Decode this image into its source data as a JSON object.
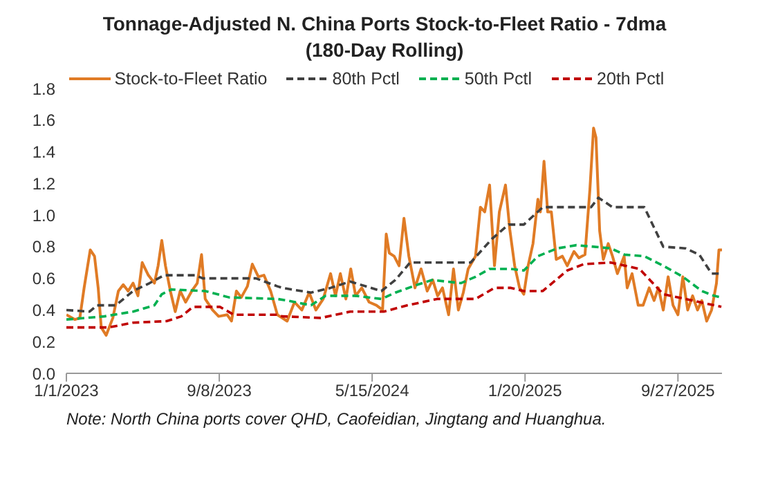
{
  "chart_data": {
    "type": "line",
    "title": "Tonnage-Adjusted N. China Ports Stock-to-Fleet Ratio - 7dma",
    "subtitle": "(180-Day Rolling)",
    "annotations": [
      "Note: North China ports cover QHD, Caofeidian, Jingtang and Huanghua."
    ],
    "xlim": [
      "2023-01-01",
      "2025-12-08"
    ],
    "xticks": [
      {
        "value": "2023-01-01",
        "label": "1/1/2023"
      },
      {
        "value": "2023-09-08",
        "label": "9/8/2023"
      },
      {
        "value": "2024-05-15",
        "label": "5/15/2024"
      },
      {
        "value": "2025-01-20",
        "label": "1/20/2025"
      },
      {
        "value": "2025-09-27",
        "label": "9/27/2025"
      }
    ],
    "ylim": [
      0,
      1.8
    ],
    "yticks": [
      {
        "value": 0,
        "label": "0.0"
      },
      {
        "value": 0.2,
        "label": "0.2"
      },
      {
        "value": 0.4,
        "label": "0.4"
      },
      {
        "value": 0.6,
        "label": "0.6"
      },
      {
        "value": 0.8,
        "label": "0.8"
      },
      {
        "value": 1,
        "label": "1.0"
      },
      {
        "value": 1.2,
        "label": "1.2"
      },
      {
        "value": 1.4,
        "label": "1.4"
      },
      {
        "value": 1.6,
        "label": "1.6"
      },
      {
        "value": 1.8,
        "label": "1.8"
      }
    ],
    "grid": false,
    "legend": "top",
    "marker": "none",
    "series": [
      {
        "name": "Stock-to-Fleet Ratio",
        "color": "#e07b25",
        "line_style": "solid",
        "x": [
          "2023-01-01",
          "2023-01-15",
          "2023-01-23",
          "2023-01-30",
          "2023-02-09",
          "2023-02-16",
          "2023-02-22",
          "2023-02-27",
          "2023-03-07",
          "2023-03-18",
          "2023-03-27",
          "2023-04-04",
          "2023-04-12",
          "2023-04-20",
          "2023-04-28",
          "2023-05-05",
          "2023-05-15",
          "2023-05-25",
          "2023-05-31",
          "2023-06-06",
          "2023-06-12",
          "2023-06-20",
          "2023-06-28",
          "2023-07-06",
          "2023-07-15",
          "2023-07-25",
          "2023-08-03",
          "2023-08-10",
          "2023-08-16",
          "2023-08-28",
          "2023-09-07",
          "2023-09-21",
          "2023-09-28",
          "2023-10-06",
          "2023-10-14",
          "2023-10-24",
          "2023-11-01",
          "2023-11-11",
          "2023-11-20",
          "2023-12-01",
          "2023-12-12",
          "2023-12-28",
          "2024-01-09",
          "2024-01-21",
          "2024-02-02",
          "2024-02-13",
          "2024-02-25",
          "2024-03-08",
          "2024-03-16",
          "2024-03-24",
          "2024-04-02",
          "2024-04-10",
          "2024-04-18",
          "2024-04-28",
          "2024-05-10",
          "2024-05-22",
          "2024-06-01",
          "2024-06-07",
          "2024-06-12",
          "2024-06-20",
          "2024-06-28",
          "2024-07-06",
          "2024-07-14",
          "2024-07-24",
          "2024-08-03",
          "2024-08-13",
          "2024-08-22",
          "2024-08-30",
          "2024-09-07",
          "2024-09-17",
          "2024-09-25",
          "2024-10-03",
          "2024-10-11",
          "2024-10-19",
          "2024-10-31",
          "2024-11-08",
          "2024-11-15",
          "2024-11-23",
          "2024-12-01",
          "2024-12-09",
          "2024-12-19",
          "2024-12-26",
          "2025-01-03",
          "2025-01-11",
          "2025-01-18",
          "2025-01-25",
          "2025-02-02",
          "2025-02-10",
          "2025-02-14",
          "2025-02-20",
          "2025-02-26",
          "2025-03-04",
          "2025-03-12",
          "2025-03-22",
          "2025-03-30",
          "2025-04-10",
          "2025-04-18",
          "2025-04-28",
          "2025-05-06",
          "2025-05-12",
          "2025-05-16",
          "2025-05-22",
          "2025-05-28",
          "2025-06-05",
          "2025-06-12",
          "2025-06-20",
          "2025-07-01",
          "2025-07-06",
          "2025-07-14",
          "2025-07-24",
          "2025-08-01",
          "2025-08-11",
          "2025-08-19",
          "2025-08-26",
          "2025-09-03",
          "2025-09-11",
          "2025-09-19",
          "2025-09-27",
          "2025-10-05",
          "2025-10-13",
          "2025-10-21",
          "2025-10-29",
          "2025-11-05",
          "2025-11-13",
          "2025-11-21",
          "2025-11-29",
          "2025-12-03",
          "2025-12-08"
        ],
        "values": [
          0.37,
          0.34,
          0.35,
          0.54,
          0.78,
          0.74,
          0.54,
          0.29,
          0.24,
          0.35,
          0.52,
          0.56,
          0.52,
          0.57,
          0.49,
          0.7,
          0.62,
          0.57,
          0.68,
          0.84,
          0.68,
          0.52,
          0.39,
          0.52,
          0.45,
          0.52,
          0.57,
          0.75,
          0.47,
          0.4,
          0.36,
          0.37,
          0.33,
          0.52,
          0.48,
          0.55,
          0.69,
          0.61,
          0.62,
          0.52,
          0.37,
          0.33,
          0.45,
          0.4,
          0.51,
          0.4,
          0.47,
          0.63,
          0.49,
          0.63,
          0.47,
          0.66,
          0.49,
          0.54,
          0.45,
          0.43,
          0.4,
          0.88,
          0.76,
          0.74,
          0.68,
          0.98,
          0.74,
          0.54,
          0.66,
          0.52,
          0.59,
          0.49,
          0.54,
          0.37,
          0.66,
          0.4,
          0.51,
          0.66,
          0.74,
          1.05,
          1.02,
          1.19,
          0.68,
          1.02,
          1.19,
          0.91,
          0.68,
          0.54,
          0.5,
          0.68,
          0.82,
          1.1,
          1.02,
          1.34,
          1.02,
          1.02,
          0.72,
          0.74,
          0.68,
          0.77,
          0.73,
          0.75,
          1.16,
          1.55,
          1.49,
          0.9,
          0.72,
          0.82,
          0.74,
          0.63,
          0.74,
          0.54,
          0.63,
          0.43,
          0.43,
          0.54,
          0.46,
          0.54,
          0.4,
          0.61,
          0.43,
          0.37,
          0.61,
          0.4,
          0.49,
          0.4,
          0.46,
          0.33,
          0.4,
          0.57,
          0.78,
          0.78
        ]
      },
      {
        "name": "80th Pctl",
        "color": "#404040",
        "line_style": "dashed",
        "x": [
          "2023-01-01",
          "2023-02-08",
          "2023-02-20",
          "2023-03-23",
          "2023-04-20",
          "2023-05-17",
          "2023-06-10",
          "2023-07-31",
          "2023-08-12",
          "2023-11-07",
          "2023-12-12",
          "2023-12-20",
          "2024-02-05",
          "2024-03-08",
          "2024-04-09",
          "2024-05-30",
          "2024-06-22",
          "2024-07-16",
          "2024-10-23",
          "2024-11-27",
          "2024-12-24",
          "2025-01-18",
          "2025-02-18",
          "2025-05-08",
          "2025-05-20",
          "2025-06-12",
          "2025-08-03",
          "2025-09-03",
          "2025-10-09",
          "2025-11-01",
          "2025-11-21",
          "2025-12-08"
        ],
        "values": [
          0.4,
          0.39,
          0.43,
          0.43,
          0.52,
          0.57,
          0.62,
          0.62,
          0.6,
          0.6,
          0.55,
          0.54,
          0.51,
          0.54,
          0.58,
          0.52,
          0.59,
          0.7,
          0.7,
          0.85,
          0.94,
          0.94,
          1.05,
          1.05,
          1.11,
          1.05,
          1.05,
          0.8,
          0.79,
          0.75,
          0.63,
          0.63
        ]
      },
      {
        "name": "50th Pctl",
        "color": "#00b050",
        "line_style": "dashed",
        "x": [
          "2023-01-01",
          "2023-03-04",
          "2023-04-20",
          "2023-05-25",
          "2023-06-06",
          "2023-06-22",
          "2023-08-16",
          "2023-09-24",
          "2023-12-12",
          "2023-12-28",
          "2024-02-05",
          "2024-02-29",
          "2024-04-18",
          "2024-05-30",
          "2024-06-22",
          "2024-07-28",
          "2024-08-21",
          "2024-10-07",
          "2024-10-31",
          "2024-11-23",
          "2024-12-28",
          "2025-01-18",
          "2025-02-10",
          "2025-03-14",
          "2025-04-14",
          "2025-06-09",
          "2025-07-02",
          "2025-08-03",
          "2025-09-03",
          "2025-10-05",
          "2025-11-05",
          "2025-11-25",
          "2025-12-07"
        ],
        "values": [
          0.34,
          0.36,
          0.39,
          0.43,
          0.5,
          0.53,
          0.52,
          0.48,
          0.47,
          0.46,
          0.43,
          0.49,
          0.49,
          0.47,
          0.51,
          0.56,
          0.59,
          0.57,
          0.61,
          0.66,
          0.66,
          0.65,
          0.74,
          0.79,
          0.81,
          0.79,
          0.75,
          0.74,
          0.68,
          0.61,
          0.52,
          0.49,
          0.48
        ]
      },
      {
        "name": "20th Pctl",
        "color": "#c00000",
        "line_style": "dashed",
        "x": [
          "2023-01-01",
          "2023-03-11",
          "2023-04-20",
          "2023-06-14",
          "2023-07-08",
          "2023-07-27",
          "2023-09-09",
          "2023-10-02",
          "2023-12-12",
          "2023-12-20",
          "2024-02-21",
          "2024-04-09",
          "2024-06-03",
          "2024-07-12",
          "2024-08-29",
          "2024-10-31",
          "2024-12-01",
          "2024-12-28",
          "2025-01-18",
          "2025-02-18",
          "2025-03-30",
          "2025-04-26",
          "2025-06-09",
          "2025-07-26",
          "2025-09-03",
          "2025-10-21",
          "2025-12-07"
        ],
        "values": [
          0.29,
          0.29,
          0.32,
          0.33,
          0.36,
          0.42,
          0.42,
          0.37,
          0.37,
          0.36,
          0.35,
          0.39,
          0.39,
          0.43,
          0.47,
          0.47,
          0.54,
          0.54,
          0.52,
          0.52,
          0.65,
          0.69,
          0.7,
          0.66,
          0.5,
          0.46,
          0.42
        ]
      }
    ]
  }
}
